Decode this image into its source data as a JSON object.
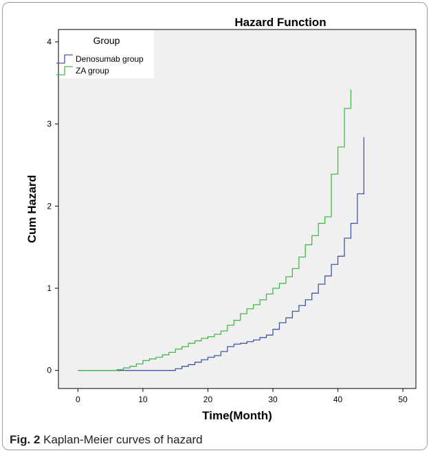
{
  "caption": {
    "label": "Fig. 2",
    "text": "Kaplan-Meier curves of hazard"
  },
  "chart_data": {
    "type": "line",
    "step": true,
    "title": "Hazard Function",
    "xlabel": "Time(Month)",
    "ylabel": "Cum Hazard",
    "xlim": [
      -3,
      52
    ],
    "ylim": [
      -0.22,
      4.15
    ],
    "xticks": [
      0,
      10,
      20,
      30,
      40,
      50
    ],
    "yticks": [
      0,
      1,
      2,
      3,
      4
    ],
    "grid": false,
    "legend": {
      "title": "Group",
      "placement": "top-left"
    },
    "plot_background": "#f0f0f0",
    "series": [
      {
        "name": "Denosumab group",
        "color": "#3f57a8",
        "x": [
          0,
          15,
          16,
          17,
          18,
          19,
          20,
          21,
          22,
          23,
          24,
          25,
          26,
          27,
          28,
          29,
          30,
          31,
          32,
          33,
          34,
          35,
          36,
          37,
          38,
          39,
          40,
          41,
          42,
          43,
          44
        ],
        "y": [
          0,
          0.02,
          0.05,
          0.07,
          0.1,
          0.13,
          0.16,
          0.18,
          0.23,
          0.29,
          0.32,
          0.33,
          0.35,
          0.37,
          0.4,
          0.43,
          0.5,
          0.58,
          0.64,
          0.72,
          0.79,
          0.86,
          0.94,
          1.05,
          1.15,
          1.29,
          1.39,
          1.61,
          1.79,
          2.15,
          2.58
        ],
        "end_y": 2.84
      },
      {
        "name": "ZA group",
        "color": "#45b84a",
        "x": [
          0,
          6,
          7,
          8,
          9,
          10,
          11,
          12,
          13,
          14,
          15,
          16,
          17,
          18,
          19,
          20,
          21,
          22,
          23,
          24,
          25,
          26,
          27,
          28,
          29,
          30,
          31,
          32,
          33,
          34,
          35,
          36,
          37,
          38,
          39,
          40,
          41,
          42
        ],
        "y": [
          0,
          0.01,
          0.03,
          0.05,
          0.08,
          0.12,
          0.14,
          0.16,
          0.19,
          0.22,
          0.26,
          0.29,
          0.33,
          0.36,
          0.39,
          0.41,
          0.44,
          0.48,
          0.55,
          0.61,
          0.69,
          0.75,
          0.8,
          0.86,
          0.93,
          1.0,
          1.06,
          1.14,
          1.24,
          1.38,
          1.53,
          1.64,
          1.79,
          1.87,
          2.39,
          2.72,
          3.19,
          3.42
        ],
        "end_y": 3.42
      }
    ]
  }
}
